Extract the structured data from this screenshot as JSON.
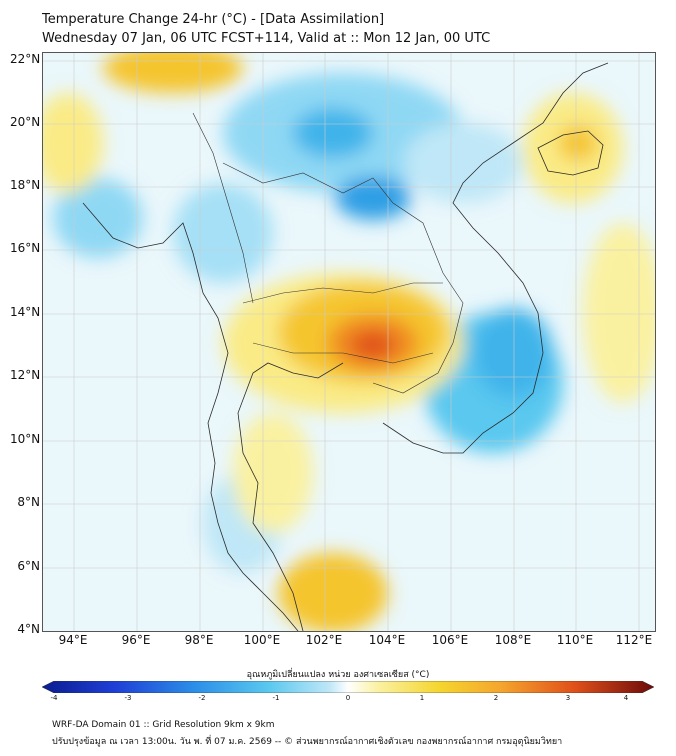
{
  "header": {
    "line1": "Temperature Change 24-hr (°C) - [Data Assimilation]",
    "line2": "Wednesday 07 Jan, 06 UTC FCST+114, Valid at :: Mon 12 Jan, 00 UTC"
  },
  "map": {
    "lat_labels": [
      "22°N",
      "20°N",
      "18°N",
      "16°N",
      "14°N",
      "12°N",
      "10°N",
      "8°N",
      "6°N",
      "4°N"
    ],
    "lon_labels": [
      "94°E",
      "96°E",
      "98°E",
      "100°E",
      "102°E",
      "104°E",
      "106°E",
      "108°E",
      "110°E",
      "112°E"
    ],
    "lat_range": [
      4,
      22.2
    ],
    "lon_range": [
      93,
      112.5
    ]
  },
  "colorbar": {
    "title": "อุณหภูมิเปลี่ยนแปลง หน่วย องศาเซลเซียส (°C)",
    "ticks": [
      "-4",
      "-3",
      "-2",
      "-1",
      "0",
      "1",
      "2",
      "3",
      "4"
    ],
    "range": [
      -4,
      4
    ]
  },
  "footer": {
    "line1": "WRF-DA Domain 01 :: Grid Resolution 9km x 9km",
    "line2": "ปรับปรุงข้อมูล ณ เวลา 13:00น. วัน พ. ที่ 07 ม.ค. 2569 -- © ส่วนพยากรณ์อากาศเชิงตัวเลข กองพยากรณ์อากาศ กรมอุตุนิยมวิทยา"
  },
  "colors": {
    "very_warm": "#e0501a",
    "warm": "#f5c52e",
    "mild_warm": "#faf1a0",
    "neutral": "#eaf7fb",
    "mild_cool": "#bfe7f7",
    "cool": "#5ac8ef",
    "very_cool": "#1f8fe0"
  }
}
